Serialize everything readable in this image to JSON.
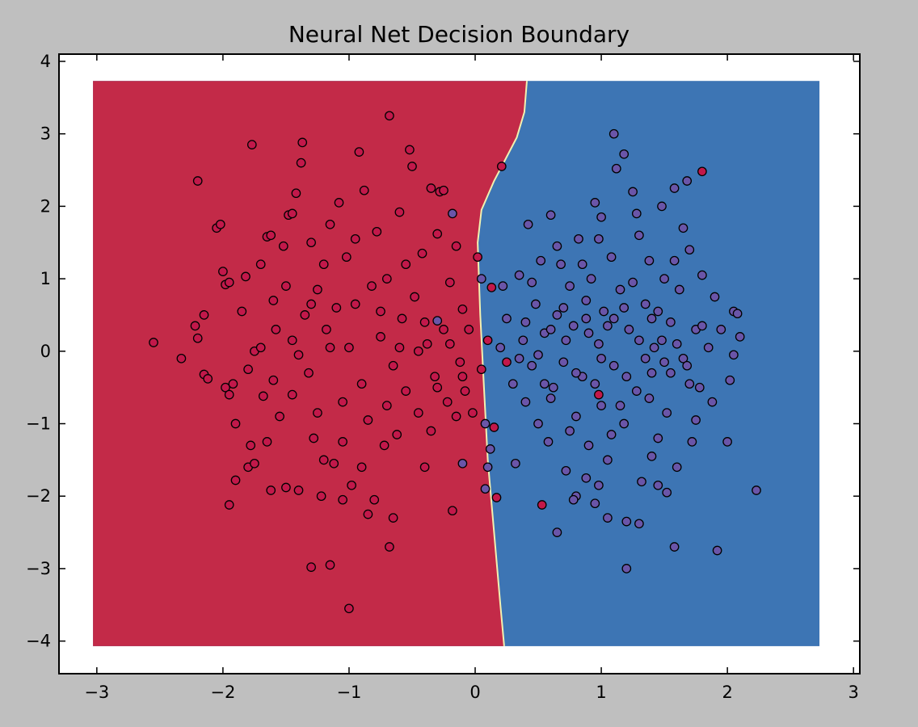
{
  "chart_data": {
    "type": "scatter",
    "title": "Neural Net Decision Boundary",
    "xlabel": "",
    "ylabel": "",
    "xlim": [
      -3.3,
      3.05
    ],
    "ylim": [
      -4.45,
      4.1
    ],
    "xticks": [
      -3,
      -2,
      -1,
      0,
      1,
      2,
      3
    ],
    "yticks": [
      -4,
      -3,
      -2,
      -1,
      0,
      1,
      2,
      3,
      4
    ],
    "grid": false,
    "legend": "none",
    "boundary": {
      "x_extent": [
        -3.03,
        2.73
      ],
      "y_extent": [
        -4.07,
        3.73
      ],
      "points": [
        [
          0.23,
          -4.07
        ],
        [
          0.2,
          -3.5
        ],
        [
          0.15,
          -2.5
        ],
        [
          0.1,
          -1.5
        ],
        [
          0.07,
          -0.5
        ],
        [
          0.04,
          0.5
        ],
        [
          0.02,
          1.5
        ],
        [
          0.05,
          1.95
        ],
        [
          0.15,
          2.35
        ],
        [
          0.24,
          2.65
        ],
        [
          0.33,
          2.95
        ],
        [
          0.39,
          3.3
        ],
        [
          0.41,
          3.73
        ]
      ],
      "colors": {
        "class_0": "#c32a48",
        "class_1": "#3d75b4",
        "edge": "#f2f0b0"
      }
    },
    "series": [
      {
        "color": "#c2184a",
        "points": [
          [
            -2.55,
            0.12
          ],
          [
            -2.33,
            -0.1
          ],
          [
            -2.2,
            2.35
          ],
          [
            -2.22,
            0.35
          ],
          [
            -2.2,
            0.18
          ],
          [
            -2.15,
            0.5
          ],
          [
            -2.15,
            -0.32
          ],
          [
            -2.12,
            -0.38
          ],
          [
            -2.05,
            1.7
          ],
          [
            -2.02,
            1.75
          ],
          [
            -2.0,
            1.1
          ],
          [
            -1.98,
            0.92
          ],
          [
            -1.98,
            -0.5
          ],
          [
            -1.95,
            0.95
          ],
          [
            -1.95,
            -0.6
          ],
          [
            -1.92,
            -0.45
          ],
          [
            -1.9,
            -1.78
          ],
          [
            -1.95,
            -2.12
          ],
          [
            -1.85,
            0.55
          ],
          [
            -1.82,
            1.03
          ],
          [
            -1.8,
            -0.25
          ],
          [
            -1.8,
            -1.6
          ],
          [
            -1.77,
            2.85
          ],
          [
            -1.75,
            -1.55
          ],
          [
            -1.75,
            0.0
          ],
          [
            -1.7,
            1.2
          ],
          [
            -1.68,
            -0.62
          ],
          [
            -1.65,
            1.58
          ],
          [
            -1.62,
            1.6
          ],
          [
            -1.62,
            -1.92
          ],
          [
            -1.6,
            0.7
          ],
          [
            -1.58,
            0.3
          ],
          [
            -1.55,
            -0.9
          ],
          [
            -1.52,
            1.45
          ],
          [
            -1.5,
            0.9
          ],
          [
            -1.5,
            -1.88
          ],
          [
            -1.48,
            1.88
          ],
          [
            -1.45,
            1.9
          ],
          [
            -1.45,
            0.15
          ],
          [
            -1.42,
            2.18
          ],
          [
            -1.4,
            -1.92
          ],
          [
            -1.38,
            2.6
          ],
          [
            -1.37,
            2.88
          ],
          [
            -1.35,
            0.5
          ],
          [
            -1.32,
            -0.3
          ],
          [
            -1.3,
            1.5
          ],
          [
            -1.28,
            -1.2
          ],
          [
            -1.25,
            0.85
          ],
          [
            -1.22,
            -2.0
          ],
          [
            -1.2,
            1.2
          ],
          [
            -1.2,
            -1.5
          ],
          [
            -1.18,
            0.3
          ],
          [
            -1.15,
            1.75
          ],
          [
            -1.12,
            -1.55
          ],
          [
            -1.1,
            0.6
          ],
          [
            -1.08,
            2.05
          ],
          [
            -1.05,
            -0.7
          ],
          [
            -1.02,
            1.3
          ],
          [
            -1.0,
            0.05
          ],
          [
            -0.98,
            -1.85
          ],
          [
            -0.95,
            1.55
          ],
          [
            -0.92,
            2.75
          ],
          [
            -0.9,
            -0.45
          ],
          [
            -0.88,
            2.22
          ],
          [
            -0.85,
            -0.95
          ],
          [
            -0.82,
            0.9
          ],
          [
            -0.8,
            -2.05
          ],
          [
            -0.78,
            1.65
          ],
          [
            -0.75,
            0.2
          ],
          [
            -0.72,
            -1.3
          ],
          [
            -0.7,
            1.0
          ],
          [
            -0.68,
            3.25
          ],
          [
            -0.65,
            -0.2
          ],
          [
            -0.62,
            -1.15
          ],
          [
            -0.6,
            1.92
          ],
          [
            -0.58,
            0.45
          ],
          [
            -0.55,
            -0.55
          ],
          [
            -0.52,
            2.78
          ],
          [
            -0.5,
            2.55
          ],
          [
            -0.48,
            0.75
          ],
          [
            -0.45,
            -0.85
          ],
          [
            -0.42,
            1.35
          ],
          [
            -0.4,
            -1.6
          ],
          [
            -0.38,
            0.1
          ],
          [
            -0.35,
            2.25
          ],
          [
            -0.32,
            -0.35
          ],
          [
            -0.3,
            1.62
          ],
          [
            -0.28,
            2.2
          ],
          [
            -0.25,
            2.22
          ],
          [
            -0.22,
            -0.7
          ],
          [
            -0.2,
            0.95
          ],
          [
            -0.18,
            -2.2
          ],
          [
            -0.15,
            1.45
          ],
          [
            -0.12,
            -0.15
          ],
          [
            -0.1,
            0.58
          ],
          [
            -0.08,
            -0.55
          ],
          [
            -0.05,
            0.3
          ],
          [
            -0.02,
            -0.85
          ],
          [
            0.02,
            1.3
          ],
          [
            0.05,
            -0.25
          ],
          [
            -1.3,
            -2.98
          ],
          [
            -1.15,
            -2.95
          ],
          [
            -1.0,
            -3.55
          ],
          [
            -0.68,
            -2.7
          ],
          [
            -0.65,
            -2.3
          ],
          [
            -0.85,
            -2.25
          ],
          [
            -1.05,
            -2.05
          ],
          [
            -1.6,
            -0.4
          ],
          [
            -1.4,
            -0.05
          ],
          [
            -1.3,
            0.65
          ],
          [
            -1.15,
            0.05
          ],
          [
            -0.95,
            0.65
          ],
          [
            -0.75,
            0.55
          ],
          [
            -0.55,
            1.2
          ],
          [
            -0.45,
            0.0
          ],
          [
            -0.35,
            -1.1
          ],
          [
            -0.25,
            0.3
          ],
          [
            -0.15,
            -0.9
          ],
          [
            -1.7,
            0.05
          ],
          [
            -1.9,
            -1.0
          ],
          [
            -1.78,
            -1.3
          ],
          [
            -1.65,
            -1.25
          ],
          [
            -1.45,
            -0.6
          ],
          [
            -1.25,
            -0.85
          ],
          [
            -1.05,
            -1.25
          ],
          [
            -0.9,
            -1.6
          ],
          [
            -0.7,
            -0.75
          ],
          [
            -0.6,
            0.05
          ],
          [
            -0.4,
            0.4
          ],
          [
            -0.3,
            -0.5
          ],
          [
            -0.2,
            0.1
          ],
          [
            -0.1,
            -0.35
          ],
          [
            0.1,
            0.15
          ],
          [
            0.13,
            0.88
          ],
          [
            0.15,
            -1.05
          ],
          [
            0.17,
            -2.02
          ],
          [
            0.21,
            2.55
          ],
          [
            0.25,
            -0.15
          ],
          [
            0.53,
            -2.12
          ],
          [
            0.98,
            -0.6
          ],
          [
            1.8,
            2.48
          ]
        ]
      },
      {
        "color": "#6a55a8",
        "points": [
          [
            -0.18,
            1.9
          ],
          [
            -0.3,
            0.42
          ],
          [
            -0.1,
            -1.55
          ],
          [
            0.05,
            1.0
          ],
          [
            0.08,
            -1.9
          ],
          [
            0.08,
            -1.0
          ],
          [
            0.1,
            -1.6
          ],
          [
            0.12,
            -1.35
          ],
          [
            0.2,
            0.05
          ],
          [
            0.22,
            0.9
          ],
          [
            0.25,
            0.45
          ],
          [
            0.3,
            -0.45
          ],
          [
            0.32,
            -1.55
          ],
          [
            0.35,
            1.05
          ],
          [
            0.38,
            0.15
          ],
          [
            0.4,
            -0.7
          ],
          [
            0.42,
            1.75
          ],
          [
            0.45,
            -0.2
          ],
          [
            0.48,
            0.65
          ],
          [
            0.5,
            -1.0
          ],
          [
            0.52,
            1.25
          ],
          [
            0.55,
            0.25
          ],
          [
            0.58,
            -1.25
          ],
          [
            0.6,
            1.88
          ],
          [
            0.62,
            -0.5
          ],
          [
            0.65,
            0.5
          ],
          [
            0.65,
            -2.5
          ],
          [
            0.68,
            1.2
          ],
          [
            0.7,
            -0.15
          ],
          [
            0.72,
            -1.65
          ],
          [
            0.75,
            0.9
          ],
          [
            0.78,
            0.35
          ],
          [
            0.8,
            -0.9
          ],
          [
            0.8,
            -2.0
          ],
          [
            0.82,
            1.55
          ],
          [
            0.85,
            -0.35
          ],
          [
            0.88,
            0.7
          ],
          [
            0.9,
            -1.3
          ],
          [
            0.92,
            1.0
          ],
          [
            0.95,
            2.05
          ],
          [
            0.95,
            -2.1
          ],
          [
            0.98,
            0.1
          ],
          [
            1.0,
            -0.75
          ],
          [
            1.0,
            1.85
          ],
          [
            1.02,
            0.55
          ],
          [
            1.05,
            -1.5
          ],
          [
            1.08,
            1.3
          ],
          [
            1.1,
            3.0
          ],
          [
            1.1,
            -0.2
          ],
          [
            1.12,
            2.52
          ],
          [
            1.15,
            0.85
          ],
          [
            1.18,
            -1.0
          ],
          [
            1.18,
            2.72
          ],
          [
            1.2,
            -2.35
          ],
          [
            1.22,
            0.3
          ],
          [
            1.25,
            2.2
          ],
          [
            1.28,
            -0.55
          ],
          [
            1.3,
            1.6
          ],
          [
            1.32,
            -1.8
          ],
          [
            1.35,
            0.65
          ],
          [
            1.38,
            1.25
          ],
          [
            1.4,
            -0.3
          ],
          [
            1.42,
            0.05
          ],
          [
            1.45,
            -1.2
          ],
          [
            1.48,
            2.0
          ],
          [
            1.5,
            1.0
          ],
          [
            1.52,
            -0.85
          ],
          [
            1.55,
            0.4
          ],
          [
            1.58,
            2.25
          ],
          [
            1.6,
            -1.6
          ],
          [
            1.62,
            0.85
          ],
          [
            1.65,
            -0.1
          ],
          [
            1.68,
            2.35
          ],
          [
            1.7,
            1.4
          ],
          [
            1.72,
            -1.25
          ],
          [
            1.75,
            0.3
          ],
          [
            1.78,
            -0.5
          ],
          [
            1.8,
            1.05
          ],
          [
            1.85,
            0.05
          ],
          [
            1.88,
            -0.7
          ],
          [
            1.9,
            0.75
          ],
          [
            1.92,
            -2.75
          ],
          [
            1.95,
            0.3
          ],
          [
            2.0,
            -1.25
          ],
          [
            2.02,
            -0.4
          ],
          [
            2.05,
            0.55
          ],
          [
            2.1,
            0.2
          ],
          [
            2.23,
            -1.92
          ],
          [
            1.58,
            -2.7
          ],
          [
            1.3,
            -2.38
          ],
          [
            1.2,
            -3.0
          ],
          [
            0.78,
            -2.05
          ],
          [
            1.05,
            -2.3
          ],
          [
            1.4,
            -1.45
          ],
          [
            0.6,
            -0.65
          ],
          [
            0.72,
            0.15
          ],
          [
            0.85,
            1.2
          ],
          [
            0.95,
            -0.45
          ],
          [
            1.05,
            0.35
          ],
          [
            1.15,
            -0.75
          ],
          [
            1.25,
            0.95
          ],
          [
            1.35,
            -0.1
          ],
          [
            1.45,
            0.55
          ],
          [
            1.55,
            -0.3
          ],
          [
            1.65,
            1.7
          ],
          [
            1.75,
            -0.95
          ],
          [
            0.45,
            0.95
          ],
          [
            0.55,
            -0.45
          ],
          [
            0.65,
            1.45
          ],
          [
            0.75,
            -1.1
          ],
          [
            0.88,
            0.45
          ],
          [
            0.98,
            1.55
          ],
          [
            1.08,
            -1.15
          ],
          [
            1.18,
            0.6
          ],
          [
            1.28,
            1.9
          ],
          [
            1.38,
            -0.65
          ],
          [
            1.48,
            0.15
          ],
          [
            1.58,
            1.25
          ],
          [
            1.68,
            -0.2
          ],
          [
            0.35,
            -0.1
          ],
          [
            0.4,
            0.4
          ],
          [
            0.5,
            -0.05
          ],
          [
            0.6,
            0.3
          ],
          [
            0.7,
            0.6
          ],
          [
            0.8,
            -0.3
          ],
          [
            0.9,
            0.25
          ],
          [
            1.0,
            -0.1
          ],
          [
            1.1,
            0.45
          ],
          [
            1.2,
            -0.35
          ],
          [
            1.3,
            0.15
          ],
          [
            1.4,
            0.45
          ],
          [
            1.5,
            -0.15
          ],
          [
            1.6,
            0.1
          ],
          [
            1.7,
            -0.45
          ],
          [
            1.8,
            0.35
          ],
          [
            2.05,
            -0.05
          ],
          [
            2.08,
            0.52
          ],
          [
            1.52,
            -1.95
          ],
          [
            1.45,
            -1.85
          ],
          [
            0.88,
            -1.75
          ],
          [
            0.98,
            -1.85
          ]
        ]
      }
    ]
  }
}
